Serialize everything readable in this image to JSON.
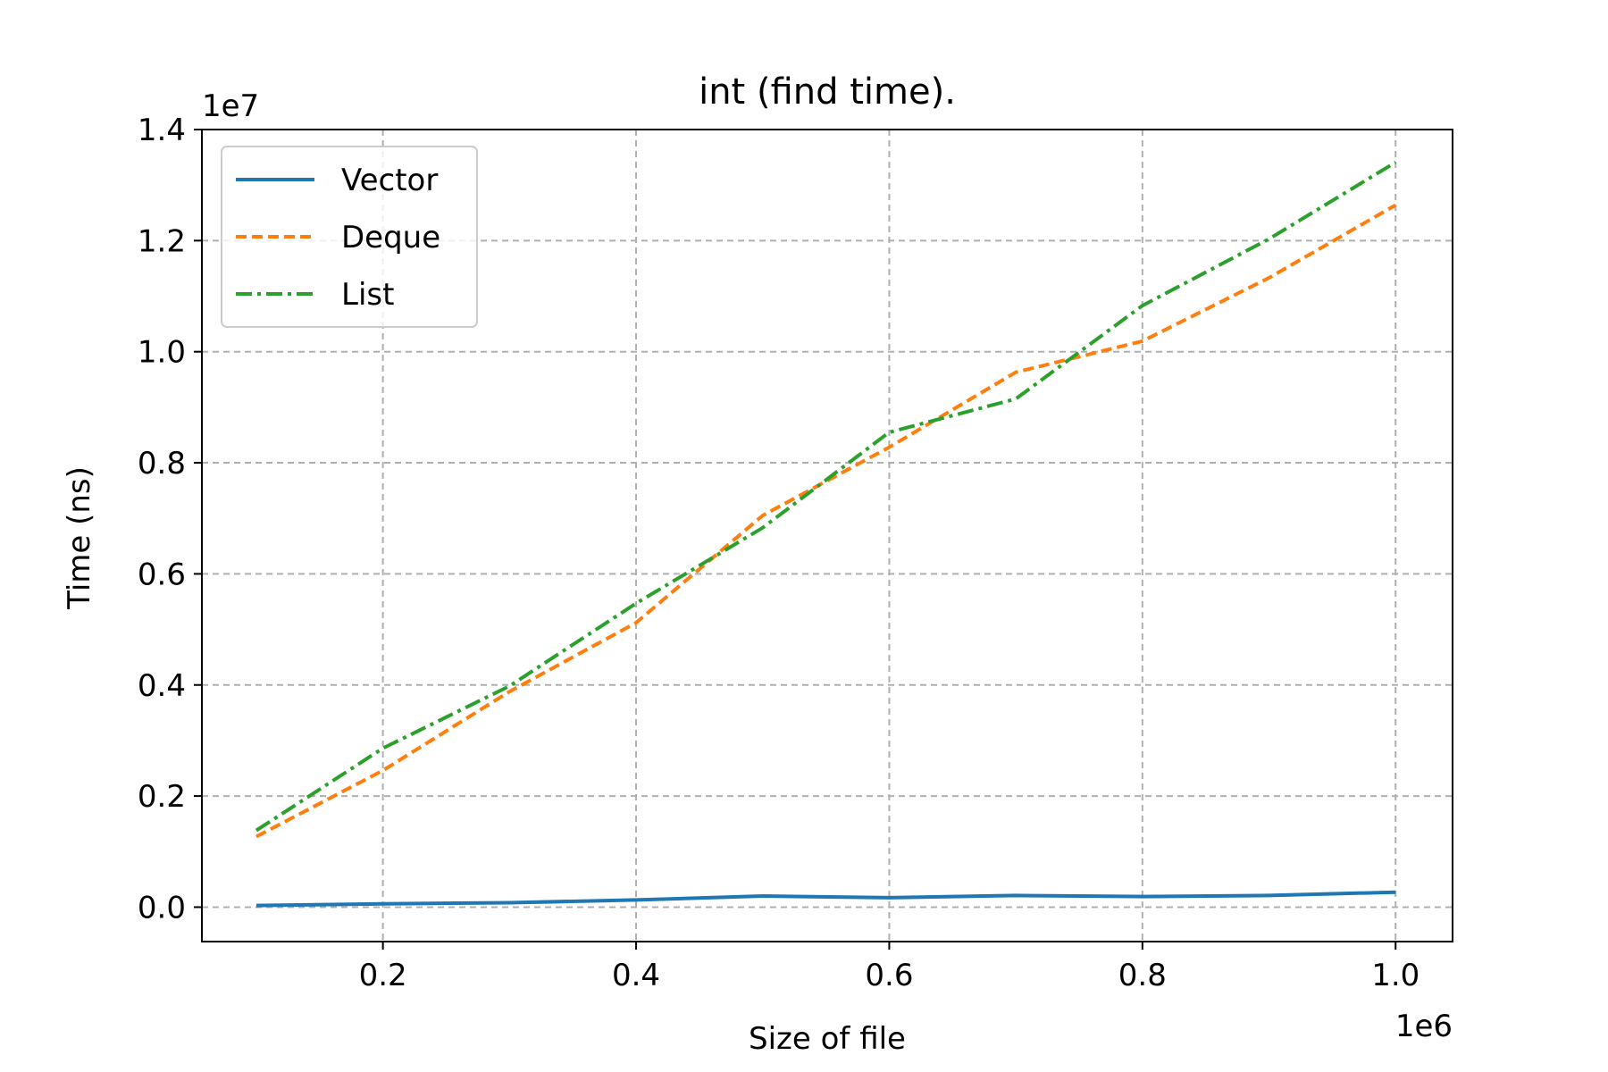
{
  "chart_data": {
    "type": "line",
    "title": "int (find time).",
    "xlabel": "Size of file",
    "ylabel": "Time (ns)",
    "x_offset_label": "1e6",
    "y_offset_label": "1e7",
    "xlim": [
      57000,
      1045000
    ],
    "ylim": [
      -620000,
      14000000
    ],
    "xticks": [
      200000,
      400000,
      600000,
      800000,
      1000000
    ],
    "xtick_labels": [
      "0.2",
      "0.4",
      "0.6",
      "0.8",
      "1.0"
    ],
    "yticks": [
      0,
      2000000,
      4000000,
      6000000,
      8000000,
      10000000,
      12000000,
      14000000
    ],
    "ytick_labels": [
      "0.0",
      "0.2",
      "0.4",
      "0.6",
      "0.8",
      "1.0",
      "1.2",
      "1.4"
    ],
    "grid": true,
    "legend_position": "upper left",
    "x": [
      100000,
      200000,
      300000,
      400000,
      500000,
      600000,
      700000,
      800000,
      900000,
      1000000
    ],
    "series": [
      {
        "name": "Vector",
        "color": "#1f77b4",
        "style": "solid",
        "values": [
          30000,
          60000,
          80000,
          130000,
          200000,
          170000,
          210000,
          190000,
          210000,
          270000
        ]
      },
      {
        "name": "Deque",
        "color": "#ff7f0e",
        "style": "dashed",
        "values": [
          1270000,
          2460000,
          3880000,
          5120000,
          7050000,
          8280000,
          9630000,
          10190000,
          11330000,
          12640000
        ]
      },
      {
        "name": "List",
        "color": "#2ca02c",
        "style": "dashdot",
        "values": [
          1380000,
          2860000,
          3980000,
          5470000,
          6830000,
          8550000,
          9150000,
          10830000,
          12030000,
          13410000
        ]
      }
    ]
  }
}
